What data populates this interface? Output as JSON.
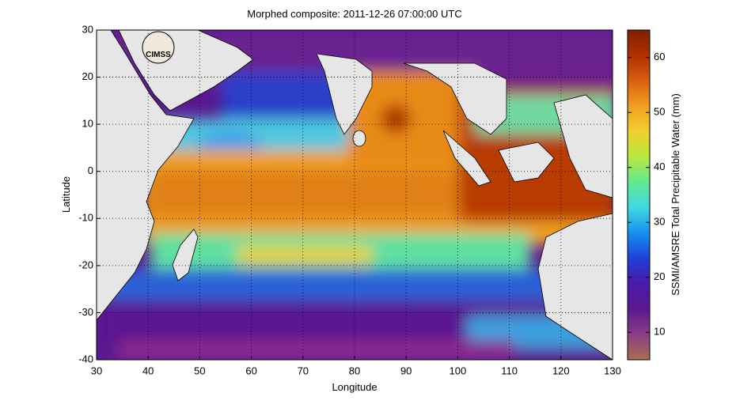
{
  "chart_data": {
    "type": "map",
    "title": "Morphed composite: 2011-12-26 07:00:00 UTC",
    "xlabel": "Longitude",
    "ylabel": "Latitude",
    "xlim": [
      30,
      130
    ],
    "ylim": [
      -40,
      30
    ],
    "xticks": [
      30,
      40,
      50,
      60,
      70,
      80,
      90,
      100,
      110,
      120,
      130
    ],
    "yticks": [
      -40,
      -30,
      -20,
      -10,
      0,
      10,
      20,
      30
    ],
    "grid": true,
    "logo": "CIMSS",
    "colorbar": {
      "label": "SSMI/AMSRE Total Precipitable Water (mm)",
      "lim": [
        5,
        65
      ],
      "ticks": [
        10,
        20,
        30,
        40,
        50,
        60
      ],
      "colormap": [
        "#a8704c",
        "#8a3e86",
        "#5a1890",
        "#4a1aa8",
        "#2040d8",
        "#1890f0",
        "#40d8e0",
        "#60e890",
        "#b8e840",
        "#f0d030",
        "#f0a020",
        "#d86010",
        "#b03000",
        "#802000"
      ]
    }
  }
}
